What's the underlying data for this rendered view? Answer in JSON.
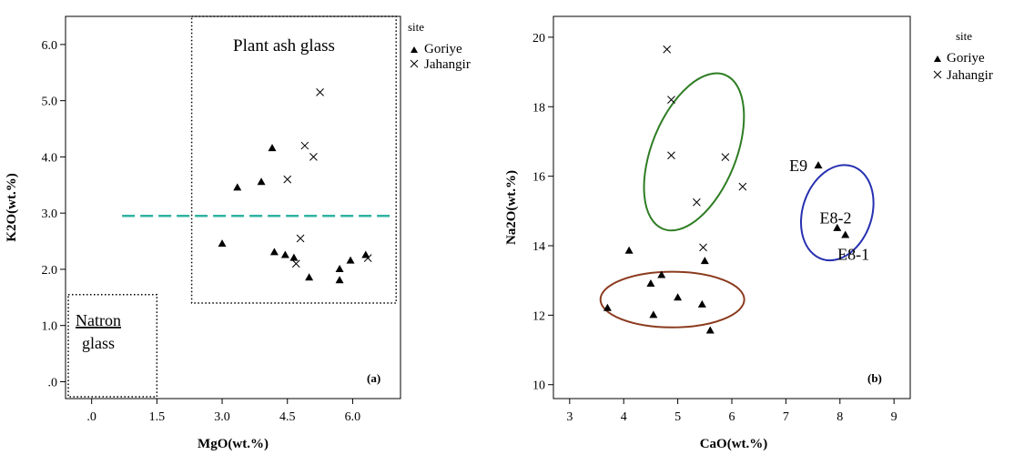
{
  "chart_data": [
    {
      "type": "scatter",
      "panel_label": "(a)",
      "xlabel": "MgO(wt.%)",
      "ylabel": "K2O(wt.%)",
      "xlim": [
        -0.6,
        7.1
      ],
      "ylim": [
        -0.3,
        6.5
      ],
      "xticks": [
        0,
        1.5,
        3,
        4.5,
        6
      ],
      "xtick_labels": [
        ".0",
        "1.5",
        "3.0",
        "4.5",
        "6.0"
      ],
      "yticks": [
        0,
        1,
        2,
        3,
        4,
        5,
        6
      ],
      "ytick_labels": [
        ".0",
        "1.0",
        "2.0",
        "3.0",
        "4.0",
        "5.0",
        "6.0"
      ],
      "legend": {
        "title": "site",
        "entries": [
          "Goriye",
          "Jahangir"
        ],
        "placement": "outside-top-right"
      },
      "regions": [
        {
          "label": "Plant ash glass",
          "x": [
            2.3,
            7.0
          ],
          "y": [
            1.4,
            6.5
          ],
          "style": "dotted"
        },
        {
          "label_lines": [
            "Natron",
            "glass"
          ],
          "x": [
            -0.6,
            1.5
          ],
          "y": [
            -0.3,
            1.55
          ],
          "style": "dotted"
        }
      ],
      "reference_line": {
        "y": 2.95,
        "x": [
          0.7,
          6.9
        ],
        "style": "dashed",
        "color": "#2fb3a0"
      },
      "series": [
        {
          "name": "Goriye",
          "marker": "triangle",
          "points": [
            [
              3.0,
              2.45
            ],
            [
              3.35,
              3.45
            ],
            [
              3.9,
              3.55
            ],
            [
              4.15,
              4.15
            ],
            [
              4.2,
              2.3
            ],
            [
              4.45,
              2.25
            ],
            [
              4.65,
              2.2
            ],
            [
              5.0,
              1.85
            ],
            [
              5.7,
              2.0
            ],
            [
              5.7,
              1.8
            ],
            [
              5.95,
              2.15
            ],
            [
              6.3,
              2.25
            ]
          ]
        },
        {
          "name": "Jahangir",
          "marker": "x",
          "points": [
            [
              4.5,
              3.6
            ],
            [
              4.8,
              2.55
            ],
            [
              4.7,
              2.1
            ],
            [
              4.9,
              4.2
            ],
            [
              5.1,
              4.0
            ],
            [
              5.25,
              5.15
            ],
            [
              6.35,
              2.2
            ]
          ]
        }
      ]
    },
    {
      "type": "scatter",
      "panel_label": "(b)",
      "xlabel": "CaO(wt.%)",
      "ylabel": "Na2O(wt.%)",
      "xlim": [
        2.7,
        9.3
      ],
      "ylim": [
        9.6,
        20.6
      ],
      "xticks": [
        3,
        4,
        5,
        6,
        7,
        8,
        9
      ],
      "xtick_labels": [
        "3",
        "4",
        "5",
        "6",
        "7",
        "8",
        "9"
      ],
      "yticks": [
        10,
        12,
        14,
        16,
        18,
        20
      ],
      "ytick_labels": [
        "10",
        "12",
        "14",
        "16",
        "18",
        "20"
      ],
      "legend": {
        "title": "site",
        "entries": [
          "Goriye",
          "Jahangir"
        ],
        "placement": "outside-top-right"
      },
      "ellipses": [
        {
          "cx": 5.3,
          "cy": 16.7,
          "rx": 3.4,
          "ry": 0.95,
          "angle_deg": -68,
          "color": "#2e7d23"
        },
        {
          "cx": 4.9,
          "cy": 12.45,
          "rx": 1.33,
          "ry": 1.6,
          "angle_deg": 0,
          "color": "#8b3a1e"
        },
        {
          "cx": 7.95,
          "cy": 14.95,
          "rx": 2.0,
          "ry": 0.78,
          "angle_deg": -72,
          "color": "#2630b0"
        }
      ],
      "point_labels": [
        {
          "text": "E9",
          "x": 7.4,
          "y": 16.3
        },
        {
          "text": "E8-2",
          "x": 7.92,
          "y": 14.8
        },
        {
          "text": "E8-1",
          "x": 8.25,
          "y": 13.75
        }
      ],
      "series": [
        {
          "name": "Goriye",
          "marker": "triangle",
          "points": [
            [
              3.7,
              12.2
            ],
            [
              4.1,
              13.85
            ],
            [
              4.5,
              12.9
            ],
            [
              4.55,
              12.0
            ],
            [
              4.7,
              13.15
            ],
            [
              5.0,
              12.5
            ],
            [
              5.45,
              12.3
            ],
            [
              5.5,
              13.55
            ],
            [
              5.6,
              11.55
            ],
            [
              7.6,
              16.3
            ],
            [
              7.95,
              14.5
            ],
            [
              8.1,
              14.3
            ]
          ]
        },
        {
          "name": "Jahangir",
          "marker": "x",
          "points": [
            [
              4.8,
              19.65
            ],
            [
              4.88,
              18.2
            ],
            [
              4.88,
              16.6
            ],
            [
              5.35,
              15.25
            ],
            [
              5.47,
              13.95
            ],
            [
              5.88,
              16.55
            ],
            [
              6.2,
              15.7
            ]
          ]
        }
      ]
    }
  ]
}
